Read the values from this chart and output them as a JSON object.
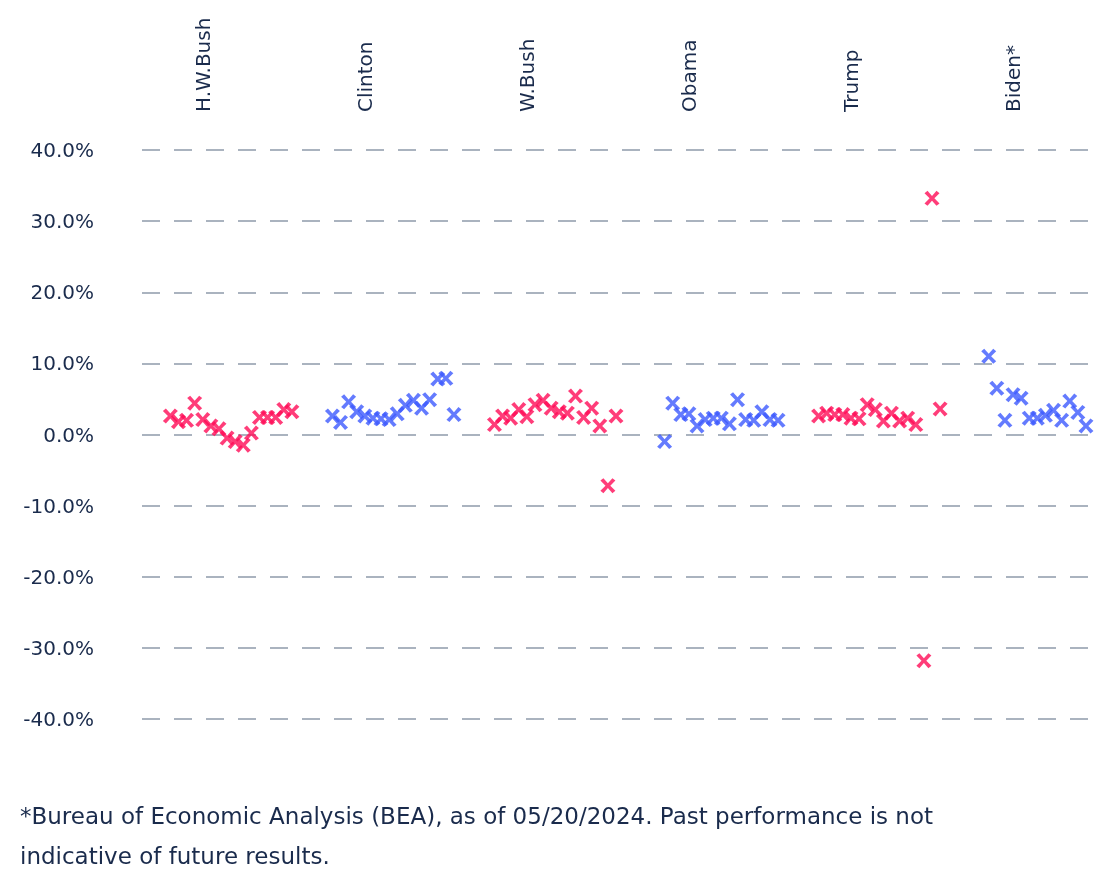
{
  "chart_data": {
    "type": "scatter",
    "categories": [
      null,
      null,
      null,
      null,
      null,
      null,
      null,
      "H.W.Bush",
      null,
      null,
      null,
      null,
      null,
      null,
      null,
      null,
      null,
      null,
      null,
      null,
      null,
      null,
      null,
      null,
      null,
      null,
      null,
      "Clinton",
      null,
      null,
      null,
      null,
      null,
      null,
      null,
      null,
      null,
      null,
      null,
      null,
      null,
      null,
      null,
      null,
      null,
      null,
      null,
      "W.Bush",
      null,
      null,
      null,
      null,
      null,
      null,
      null,
      null,
      null,
      null,
      null,
      null,
      null,
      null,
      null,
      null,
      null,
      null,
      null,
      "Obama",
      null,
      null,
      null,
      null,
      null,
      null,
      null,
      null,
      null,
      null,
      null,
      null,
      null,
      null,
      null,
      null,
      null,
      null,
      null,
      "Trump",
      null,
      null,
      null,
      null,
      null,
      null,
      null,
      null,
      null,
      null,
      null,
      null,
      null,
      null,
      null,
      null,
      null,
      null,
      null,
      "Biden*",
      null,
      null,
      null,
      null,
      null,
      null,
      null,
      null,
      null
    ],
    "series": [
      {
        "color": "#ff0d57",
        "values": [
          null,
          null,
          null,
          2.6,
          1.8,
          2.0,
          4.4,
          2.1,
          1.2,
          0.8,
          -0.5,
          -1.0,
          -1.5,
          0.2,
          2.4,
          2.4,
          2.4,
          3.5,
          3.2,
          null,
          null,
          null,
          null,
          null,
          null,
          null,
          null,
          null,
          null,
          null,
          null,
          null,
          null,
          null,
          null,
          null,
          null,
          null,
          null,
          null,
          null,
          null,
          null,
          1.4,
          2.6,
          2.3,
          3.5,
          2.5,
          4.2,
          4.8,
          3.7,
          3.2,
          3.0,
          5.4,
          2.4,
          3.7,
          1.2,
          -7.2,
          2.6,
          null,
          null,
          null,
          null,
          null,
          null,
          null,
          null,
          null,
          null,
          null,
          null,
          null,
          null,
          null,
          null,
          null,
          null,
          null,
          null,
          null,
          null,
          null,
          null,
          2.6,
          3.0,
          2.8,
          2.8,
          2.3,
          2.2,
          4.2,
          3.5,
          1.9,
          3.0,
          1.9,
          2.3,
          1.4,
          -31.8,
          33.2,
          3.6,
          null,
          null,
          null,
          null,
          null,
          null,
          null,
          null,
          null,
          null,
          null,
          null,
          null,
          null,
          null,
          null,
          null,
          null
        ]
      },
      {
        "color": "#3d5afe",
        "values": [
          null,
          null,
          null,
          null,
          null,
          null,
          null,
          null,
          null,
          null,
          null,
          null,
          null,
          null,
          null,
          null,
          null,
          null,
          null,
          null,
          null,
          null,
          null,
          2.6,
          1.7,
          4.6,
          3.2,
          2.6,
          2.3,
          2.2,
          2.1,
          2.9,
          4.1,
          4.8,
          3.7,
          4.9,
          7.8,
          7.9,
          2.8,
          null,
          null,
          null,
          null,
          null,
          null,
          null,
          null,
          null,
          null,
          null,
          null,
          null,
          null,
          null,
          null,
          null,
          null,
          null,
          null,
          null,
          null,
          null,
          null,
          null,
          -1.0,
          4.4,
          2.8,
          2.9,
          1.2,
          2.1,
          2.3,
          2.3,
          1.5,
          4.9,
          2.1,
          2.0,
          3.2,
          2.1,
          2.0,
          null,
          null,
          null,
          null,
          null,
          null,
          null,
          null,
          null,
          null,
          null,
          null,
          null,
          null,
          null,
          null,
          null,
          null,
          null,
          null,
          null,
          null,
          null,
          null,
          null,
          11.0,
          6.5,
          2.0,
          5.6,
          5.1,
          2.3,
          2.3,
          2.7,
          3.4,
          2.0,
          4.7,
          3.1,
          1.2
        ]
      }
    ],
    "ylim": [
      -40,
      40
    ],
    "yticks": [
      {
        "value": -40,
        "label": "-40.0%"
      },
      {
        "value": -30,
        "label": "-30.0%"
      },
      {
        "value": -20,
        "label": "-20.0%"
      },
      {
        "value": -10,
        "label": "-10.0%"
      },
      {
        "value": 0,
        "label": "0.0%"
      },
      {
        "value": 10,
        "label": "10.0%"
      },
      {
        "value": 20,
        "label": "20.0%"
      },
      {
        "value": 30,
        "label": "30.0%"
      },
      {
        "value": 40,
        "label": "40.0%"
      }
    ],
    "grid": "y",
    "marker": "cross",
    "annotations": [
      "*Bureau of Economic Analysis (BEA), as of 05/20/2024. Past performance is not indicative of future results."
    ]
  }
}
